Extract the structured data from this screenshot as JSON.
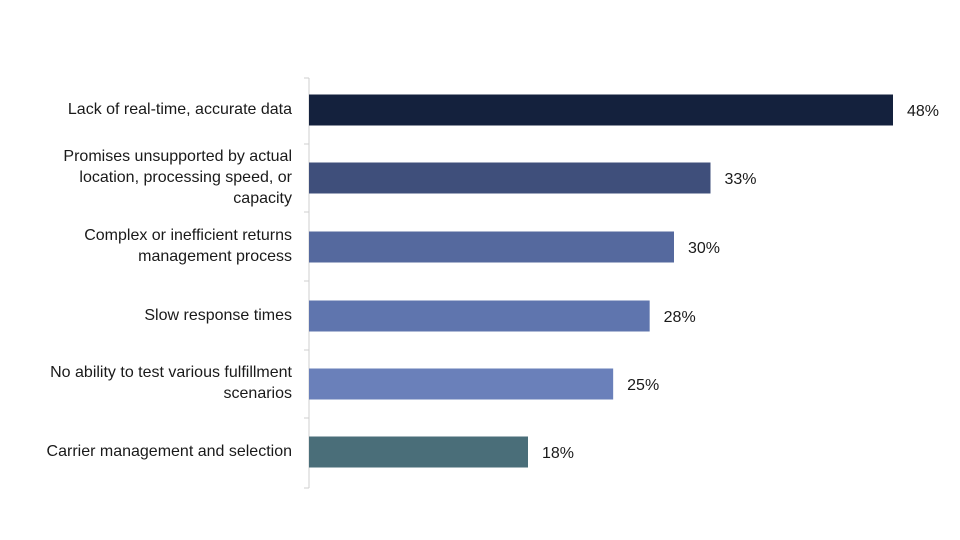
{
  "chart_data": {
    "type": "bar",
    "orientation": "horizontal",
    "title": "",
    "xlabel": "",
    "ylabel": "",
    "xlim": [
      0,
      48
    ],
    "grid": false,
    "categories": [
      "Lack of real-time, accurate data",
      "Promises unsupported by actual location, processing speed, or capacity",
      "Complex or inefficient returns management process",
      "Slow response times",
      "No ability to test various fulfillment scenarios",
      "Carrier management and selection"
    ],
    "category_lines": [
      [
        "Lack of real-time, accurate data"
      ],
      [
        "Promises unsupported by actual",
        "location, processing speed, or",
        "capacity"
      ],
      [
        "Complex or inefficient returns",
        "management process"
      ],
      [
        "Slow response times"
      ],
      [
        "No ability to test various fulfillment",
        "scenarios"
      ],
      [
        "Carrier management and selection"
      ]
    ],
    "values": [
      48,
      33,
      30,
      28,
      25,
      18
    ],
    "value_labels": [
      "48%",
      "33%",
      "30%",
      "28%",
      "25%",
      "18%"
    ],
    "colors": [
      "#14213d",
      "#3f4f7b",
      "#55699e",
      "#5f75ae",
      "#6a80ba",
      "#4a6e79"
    ],
    "axis_color": "#cfcfcf"
  }
}
